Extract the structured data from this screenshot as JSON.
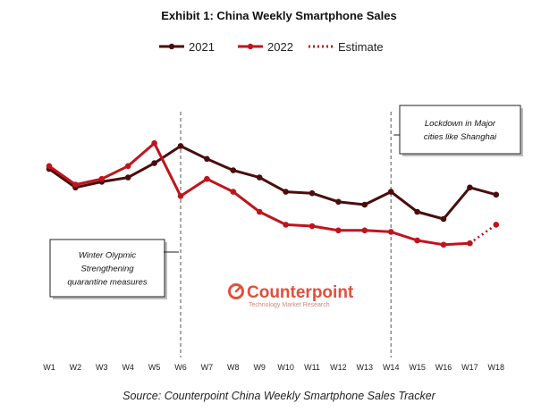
{
  "chart_data": {
    "type": "line",
    "title": "Exhibit 1: China Weekly Smartphone Sales",
    "categories": [
      "W1",
      "W2",
      "W3",
      "W4",
      "W5",
      "W6",
      "W7",
      "W8",
      "W9",
      "W10",
      "W11",
      "W12",
      "W13",
      "W14",
      "W15",
      "W16",
      "W17",
      "W18"
    ],
    "series": [
      {
        "name": "2021",
        "color": "#4a0d0d",
        "style": "solid",
        "values": [
          60,
          47,
          51,
          54,
          64,
          76,
          67,
          59,
          54,
          44,
          43,
          37,
          35,
          44,
          30,
          25,
          47,
          42
        ]
      },
      {
        "name": "2022",
        "color": "#c0141c",
        "style": "solid",
        "values": [
          62,
          49,
          53,
          62,
          78,
          41,
          53,
          44,
          30,
          21,
          20,
          17,
          17,
          16,
          10,
          7,
          8,
          null
        ]
      },
      {
        "name": "Estimate",
        "color": "#c0141c",
        "style": "dotted",
        "values": [
          null,
          null,
          null,
          null,
          null,
          null,
          null,
          null,
          null,
          null,
          null,
          null,
          null,
          null,
          null,
          null,
          8,
          21
        ]
      }
    ],
    "y_axis": {
      "shown": false,
      "ylim": [
        0,
        100
      ]
    },
    "grid": false,
    "legend_position": "top-center",
    "annotations": [
      {
        "at": "W6",
        "text_lines": [
          "Winter Olypmic",
          "Strengthening",
          "quarantine measures"
        ]
      },
      {
        "at": "W14",
        "text_lines": [
          "Lockdown in Major",
          "cities like Shanghai"
        ]
      }
    ],
    "source": "Source: Counterpoint China Weekly Smartphone Sales Tracker"
  },
  "watermark": {
    "name": "Counterpoint",
    "tagline": "Technology Market Research",
    "color": "#e0503a"
  }
}
